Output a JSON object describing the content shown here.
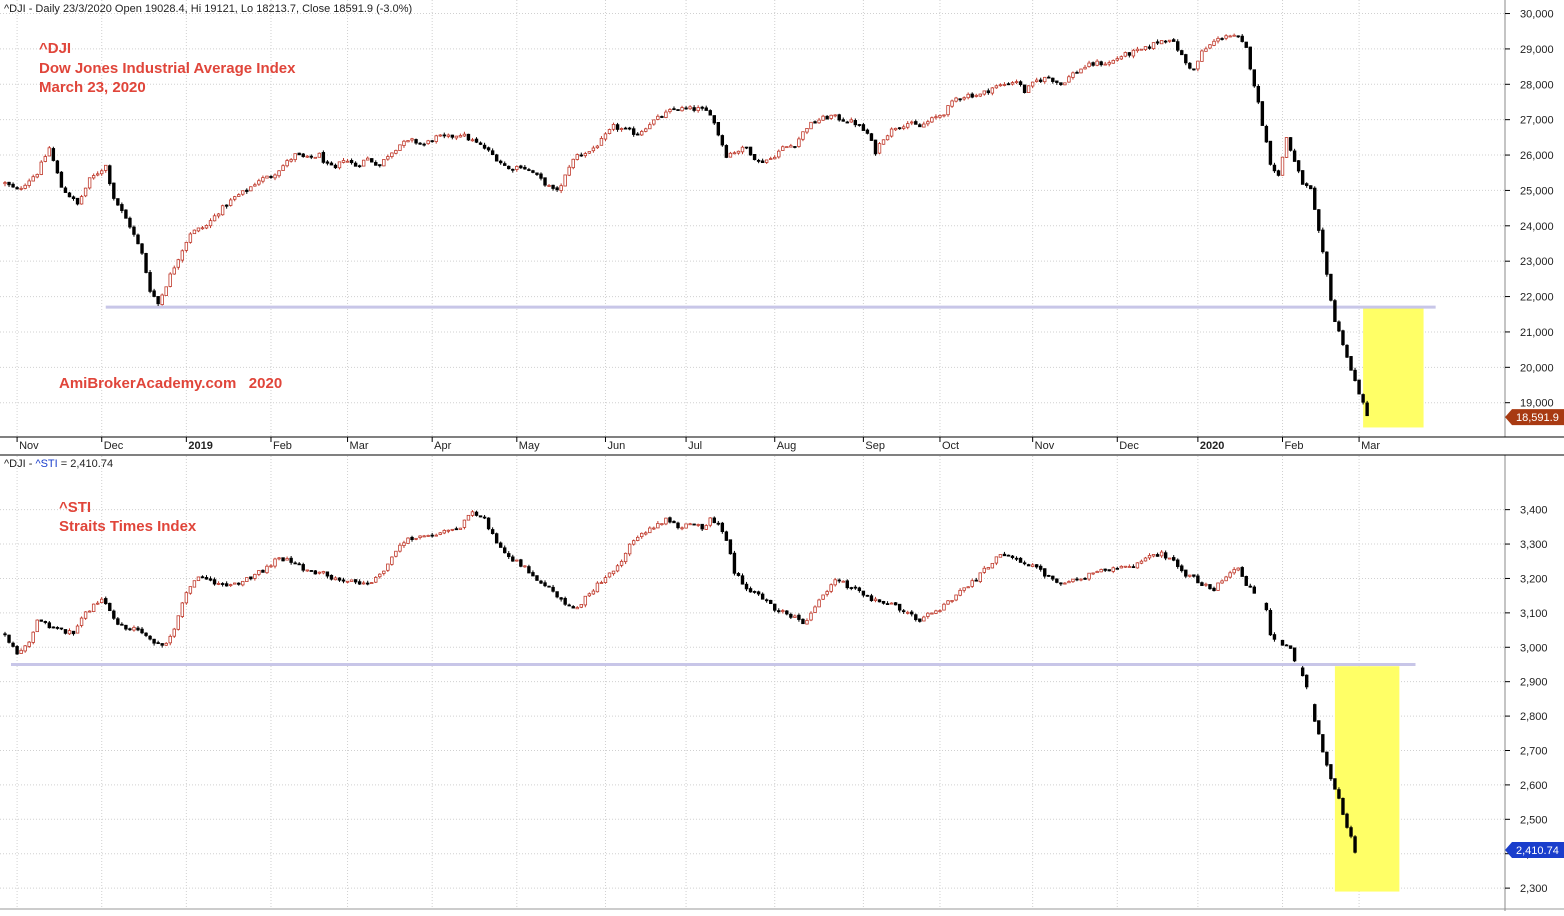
{
  "window": {
    "title": "^DJI - Daily 23/3/2020 Open 19028.4, Hi 19121, Lo 18213.7, Close 18591.9 (-3.0%)"
  },
  "colors": {
    "up": "#c0392b",
    "down": "#000000",
    "support": "#c8c6e8",
    "highlight": "#ffff66",
    "annotation": "#e0453a",
    "dji_label_bg": "#a83a12",
    "sti_label_bg": "#1a3ecc"
  },
  "x_axis": {
    "labels": [
      {
        "text": "Nov",
        "i": 3,
        "bold": false
      },
      {
        "text": "Dec",
        "i": 24,
        "bold": false
      },
      {
        "text": "2019",
        "i": 45,
        "bold": true
      },
      {
        "text": "Feb",
        "i": 66,
        "bold": false
      },
      {
        "text": "Mar",
        "i": 85,
        "bold": false
      },
      {
        "text": "Apr",
        "i": 106,
        "bold": false
      },
      {
        "text": "May",
        "i": 127,
        "bold": false
      },
      {
        "text": "Jun",
        "i": 149,
        "bold": false
      },
      {
        "text": "Jul",
        "i": 169,
        "bold": false
      },
      {
        "text": "Aug",
        "i": 191,
        "bold": false
      },
      {
        "text": "Sep",
        "i": 213,
        "bold": false
      },
      {
        "text": "Oct",
        "i": 232,
        "bold": false
      },
      {
        "text": "Nov",
        "i": 255,
        "bold": false
      },
      {
        "text": "Dec",
        "i": 276,
        "bold": false
      },
      {
        "text": "2020",
        "i": 296,
        "bold": true
      },
      {
        "text": "Feb",
        "i": 317,
        "bold": false
      },
      {
        "text": "Mar",
        "i": 336,
        "bold": false
      }
    ]
  },
  "chart_data": [
    {
      "type": "candlestick",
      "id": "dji",
      "header": "^DJI - Daily 23/3/2020 Open 19028.4, Hi 19121, Lo 18213.7, Close 18591.9 (-3.0%)",
      "annotation_lines": [
        "^DJI",
        "Dow Jones Industrial Average Index",
        "March 23, 2020"
      ],
      "watermark": "AmiBrokerAcademy.com   2020",
      "ylim": [
        18200,
        30100
      ],
      "y_ticks": [
        {
          "v": 19000,
          "label": "19,000"
        },
        {
          "v": 20000,
          "label": "20,000"
        },
        {
          "v": 21000,
          "label": "21,000"
        },
        {
          "v": 22000,
          "label": "22,000"
        },
        {
          "v": 23000,
          "label": "23,000"
        },
        {
          "v": 24000,
          "label": "24,000"
        },
        {
          "v": 25000,
          "label": "25,000"
        },
        {
          "v": 26000,
          "label": "26,000"
        },
        {
          "v": 27000,
          "label": "27,000"
        },
        {
          "v": 28000,
          "label": "28,000"
        },
        {
          "v": 29000,
          "label": "29,000"
        },
        {
          "v": 30000,
          "label": "30,000"
        }
      ],
      "last_value": 18591.9,
      "last_label": "18,591.9",
      "support_level": 21700,
      "support_range_i": [
        25,
        355
      ],
      "highlight": {
        "i0": 337,
        "i1": 352,
        "v0": 18300,
        "v1": 21700
      },
      "anchors": [
        [
          0,
          25200
        ],
        [
          3,
          25000
        ],
        [
          8,
          25500
        ],
        [
          11,
          26200
        ],
        [
          14,
          25100
        ],
        [
          18,
          24600
        ],
        [
          21,
          25300
        ],
        [
          25,
          25700
        ],
        [
          27,
          24800
        ],
        [
          31,
          24000
        ],
        [
          34,
          23200
        ],
        [
          36,
          22200
        ],
        [
          38,
          21800
        ],
        [
          41,
          22600
        ],
        [
          43,
          23100
        ],
        [
          46,
          23800
        ],
        [
          50,
          24000
        ],
        [
          53,
          24400
        ],
        [
          57,
          24800
        ],
        [
          60,
          25000
        ],
        [
          63,
          25300
        ],
        [
          66,
          25400
        ],
        [
          69,
          25700
        ],
        [
          72,
          26000
        ],
        [
          75,
          25900
        ],
        [
          78,
          26000
        ],
        [
          80,
          25700
        ],
        [
          82,
          25600
        ],
        [
          84,
          25900
        ],
        [
          87,
          25700
        ],
        [
          90,
          25900
        ],
        [
          93,
          25700
        ],
        [
          95,
          26000
        ],
        [
          98,
          26300
        ],
        [
          101,
          26400
        ],
        [
          104,
          26300
        ],
        [
          107,
          26500
        ],
        [
          110,
          26500
        ],
        [
          113,
          26600
        ],
        [
          116,
          26400
        ],
        [
          119,
          26200
        ],
        [
          122,
          25900
        ],
        [
          125,
          25600
        ],
        [
          128,
          25700
        ],
        [
          131,
          25500
        ],
        [
          134,
          25200
        ],
        [
          136,
          25000
        ],
        [
          138,
          25100
        ],
        [
          140,
          25700
        ],
        [
          142,
          26000
        ],
        [
          145,
          26100
        ],
        [
          148,
          26400
        ],
        [
          151,
          26800
        ],
        [
          154,
          26700
        ],
        [
          157,
          26600
        ],
        [
          160,
          26900
        ],
        [
          163,
          27100
        ],
        [
          166,
          27300
        ],
        [
          169,
          27300
        ],
        [
          172,
          27300
        ],
        [
          175,
          27200
        ],
        [
          177,
          26600
        ],
        [
          179,
          26000
        ],
        [
          181,
          26100
        ],
        [
          184,
          26200
        ],
        [
          187,
          25800
        ],
        [
          190,
          25900
        ],
        [
          193,
          26200
        ],
        [
          196,
          26300
        ],
        [
          199,
          26800
        ],
        [
          202,
          27000
        ],
        [
          205,
          27100
        ],
        [
          208,
          27000
        ],
        [
          211,
          26900
        ],
        [
          214,
          26600
        ],
        [
          216,
          26100
        ],
        [
          218,
          26500
        ],
        [
          221,
          26800
        ],
        [
          224,
          26900
        ],
        [
          227,
          26800
        ],
        [
          230,
          27000
        ],
        [
          233,
          27200
        ],
        [
          236,
          27600
        ],
        [
          239,
          27700
        ],
        [
          242,
          27700
        ],
        [
          245,
          27900
        ],
        [
          248,
          28000
        ],
        [
          251,
          28100
        ],
        [
          253,
          27800
        ],
        [
          256,
          28100
        ],
        [
          259,
          28200
        ],
        [
          262,
          28000
        ],
        [
          265,
          28300
        ],
        [
          268,
          28500
        ],
        [
          271,
          28600
        ],
        [
          274,
          28600
        ],
        [
          277,
          28800
        ],
        [
          280,
          28900
        ],
        [
          283,
          29000
        ],
        [
          286,
          29200
        ],
        [
          289,
          29300
        ],
        [
          291,
          29000
        ],
        [
          293,
          28600
        ],
        [
          295,
          28400
        ],
        [
          297,
          28900
        ],
        [
          300,
          29200
        ],
        [
          303,
          29400
        ],
        [
          306,
          29300
        ],
        [
          308,
          29000
        ],
        [
          310,
          28000
        ],
        [
          312,
          26900
        ],
        [
          314,
          25800
        ],
        [
          316,
          25400
        ],
        [
          318,
          26500
        ],
        [
          320,
          25800
        ],
        [
          322,
          25200
        ],
        [
          324,
          25000
        ],
        [
          326,
          23800
        ],
        [
          328,
          22600
        ],
        [
          330,
          21300
        ],
        [
          332,
          20700
        ],
        [
          334,
          19900
        ],
        [
          336,
          19300
        ],
        [
          338,
          18600
        ]
      ]
    },
    {
      "type": "candlestick",
      "id": "sti",
      "header": "^DJI - ^STI = 2,410.74",
      "annotation_lines": [
        "^STI",
        "Straits Times Index"
      ],
      "ylim": [
        2280,
        3460
      ],
      "y_ticks": [
        {
          "v": 2300,
          "label": "2,300"
        },
        {
          "v": 2400,
          "label": "2,400"
        },
        {
          "v": 2500,
          "label": "2,500"
        },
        {
          "v": 2600,
          "label": "2,600"
        },
        {
          "v": 2700,
          "label": "2,700"
        },
        {
          "v": 2800,
          "label": "2,800"
        },
        {
          "v": 2900,
          "label": "2,900"
        },
        {
          "v": 3000,
          "label": "3,000"
        },
        {
          "v": 3100,
          "label": "3,100"
        },
        {
          "v": 3200,
          "label": "3,200"
        },
        {
          "v": 3300,
          "label": "3,300"
        },
        {
          "v": 3400,
          "label": "3,400"
        }
      ],
      "last_value": 2410.74,
      "last_label": "2,410.74",
      "support_level": 2950,
      "support_range_i": [
        0,
        350
      ],
      "highlight": {
        "i0": 330,
        "i1": 346,
        "v0": 2290,
        "v1": 2945
      },
      "anchors": [
        [
          0,
          3040
        ],
        [
          3,
          2980
        ],
        [
          6,
          3010
        ],
        [
          8,
          3080
        ],
        [
          11,
          3060
        ],
        [
          14,
          3050
        ],
        [
          17,
          3040
        ],
        [
          20,
          3100
        ],
        [
          24,
          3140
        ],
        [
          27,
          3080
        ],
        [
          30,
          3060
        ],
        [
          33,
          3050
        ],
        [
          36,
          3020
        ],
        [
          39,
          3000
        ],
        [
          42,
          3050
        ],
        [
          44,
          3130
        ],
        [
          46,
          3180
        ],
        [
          49,
          3210
        ],
        [
          52,
          3190
        ],
        [
          55,
          3180
        ],
        [
          58,
          3190
        ],
        [
          62,
          3210
        ],
        [
          65,
          3230
        ],
        [
          68,
          3260
        ],
        [
          71,
          3250
        ],
        [
          74,
          3230
        ],
        [
          77,
          3220
        ],
        [
          80,
          3210
        ],
        [
          83,
          3190
        ],
        [
          86,
          3200
        ],
        [
          89,
          3180
        ],
        [
          92,
          3200
        ],
        [
          95,
          3240
        ],
        [
          98,
          3300
        ],
        [
          101,
          3320
        ],
        [
          104,
          3320
        ],
        [
          107,
          3330
        ],
        [
          110,
          3340
        ],
        [
          113,
          3350
        ],
        [
          116,
          3390
        ],
        [
          119,
          3370
        ],
        [
          121,
          3330
        ],
        [
          124,
          3270
        ],
        [
          127,
          3250
        ],
        [
          130,
          3220
        ],
        [
          133,
          3190
        ],
        [
          136,
          3160
        ],
        [
          139,
          3130
        ],
        [
          141,
          3110
        ],
        [
          143,
          3130
        ],
        [
          146,
          3170
        ],
        [
          149,
          3200
        ],
        [
          152,
          3230
        ],
        [
          155,
          3300
        ],
        [
          158,
          3330
        ],
        [
          161,
          3350
        ],
        [
          164,
          3370
        ],
        [
          167,
          3350
        ],
        [
          170,
          3360
        ],
        [
          173,
          3350
        ],
        [
          175,
          3370
        ],
        [
          177,
          3360
        ],
        [
          179,
          3310
        ],
        [
          181,
          3220
        ],
        [
          184,
          3170
        ],
        [
          187,
          3150
        ],
        [
          190,
          3120
        ],
        [
          193,
          3100
        ],
        [
          196,
          3090
        ],
        [
          198,
          3070
        ],
        [
          200,
          3100
        ],
        [
          203,
          3150
        ],
        [
          206,
          3200
        ],
        [
          209,
          3180
        ],
        [
          212,
          3160
        ],
        [
          215,
          3140
        ],
        [
          218,
          3130
        ],
        [
          221,
          3120
        ],
        [
          224,
          3100
        ],
        [
          227,
          3080
        ],
        [
          230,
          3100
        ],
        [
          233,
          3120
        ],
        [
          236,
          3150
        ],
        [
          239,
          3180
        ],
        [
          242,
          3210
        ],
        [
          245,
          3250
        ],
        [
          248,
          3270
        ],
        [
          251,
          3260
        ],
        [
          254,
          3240
        ],
        [
          257,
          3220
        ],
        [
          260,
          3200
        ],
        [
          263,
          3180
        ],
        [
          266,
          3200
        ],
        [
          269,
          3210
        ],
        [
          272,
          3220
        ],
        [
          275,
          3230
        ],
        [
          278,
          3230
        ],
        [
          281,
          3240
        ],
        [
          284,
          3260
        ],
        [
          287,
          3270
        ],
        [
          290,
          3250
        ],
        [
          292,
          3220
        ],
        [
          295,
          3200
        ],
        [
          297,
          3180
        ],
        [
          300,
          3170
        ],
        [
          302,
          3190
        ],
        [
          304,
          3210
        ],
        [
          306,
          3230
        ],
        [
          308,
          3180
        ],
        [
          310,
          3160
        ],
        [
          313,
          3110
        ],
        [
          314,
          3040
        ],
        [
          317,
          3010
        ],
        [
          319,
          2990
        ],
        [
          320,
          2960
        ],
        [
          322,
          2920
        ],
        [
          323,
          2880
        ],
        [
          325,
          2790
        ],
        [
          327,
          2700
        ],
        [
          329,
          2620
        ],
        [
          331,
          2560
        ],
        [
          333,
          2480
        ],
        [
          335,
          2410
        ]
      ]
    }
  ]
}
